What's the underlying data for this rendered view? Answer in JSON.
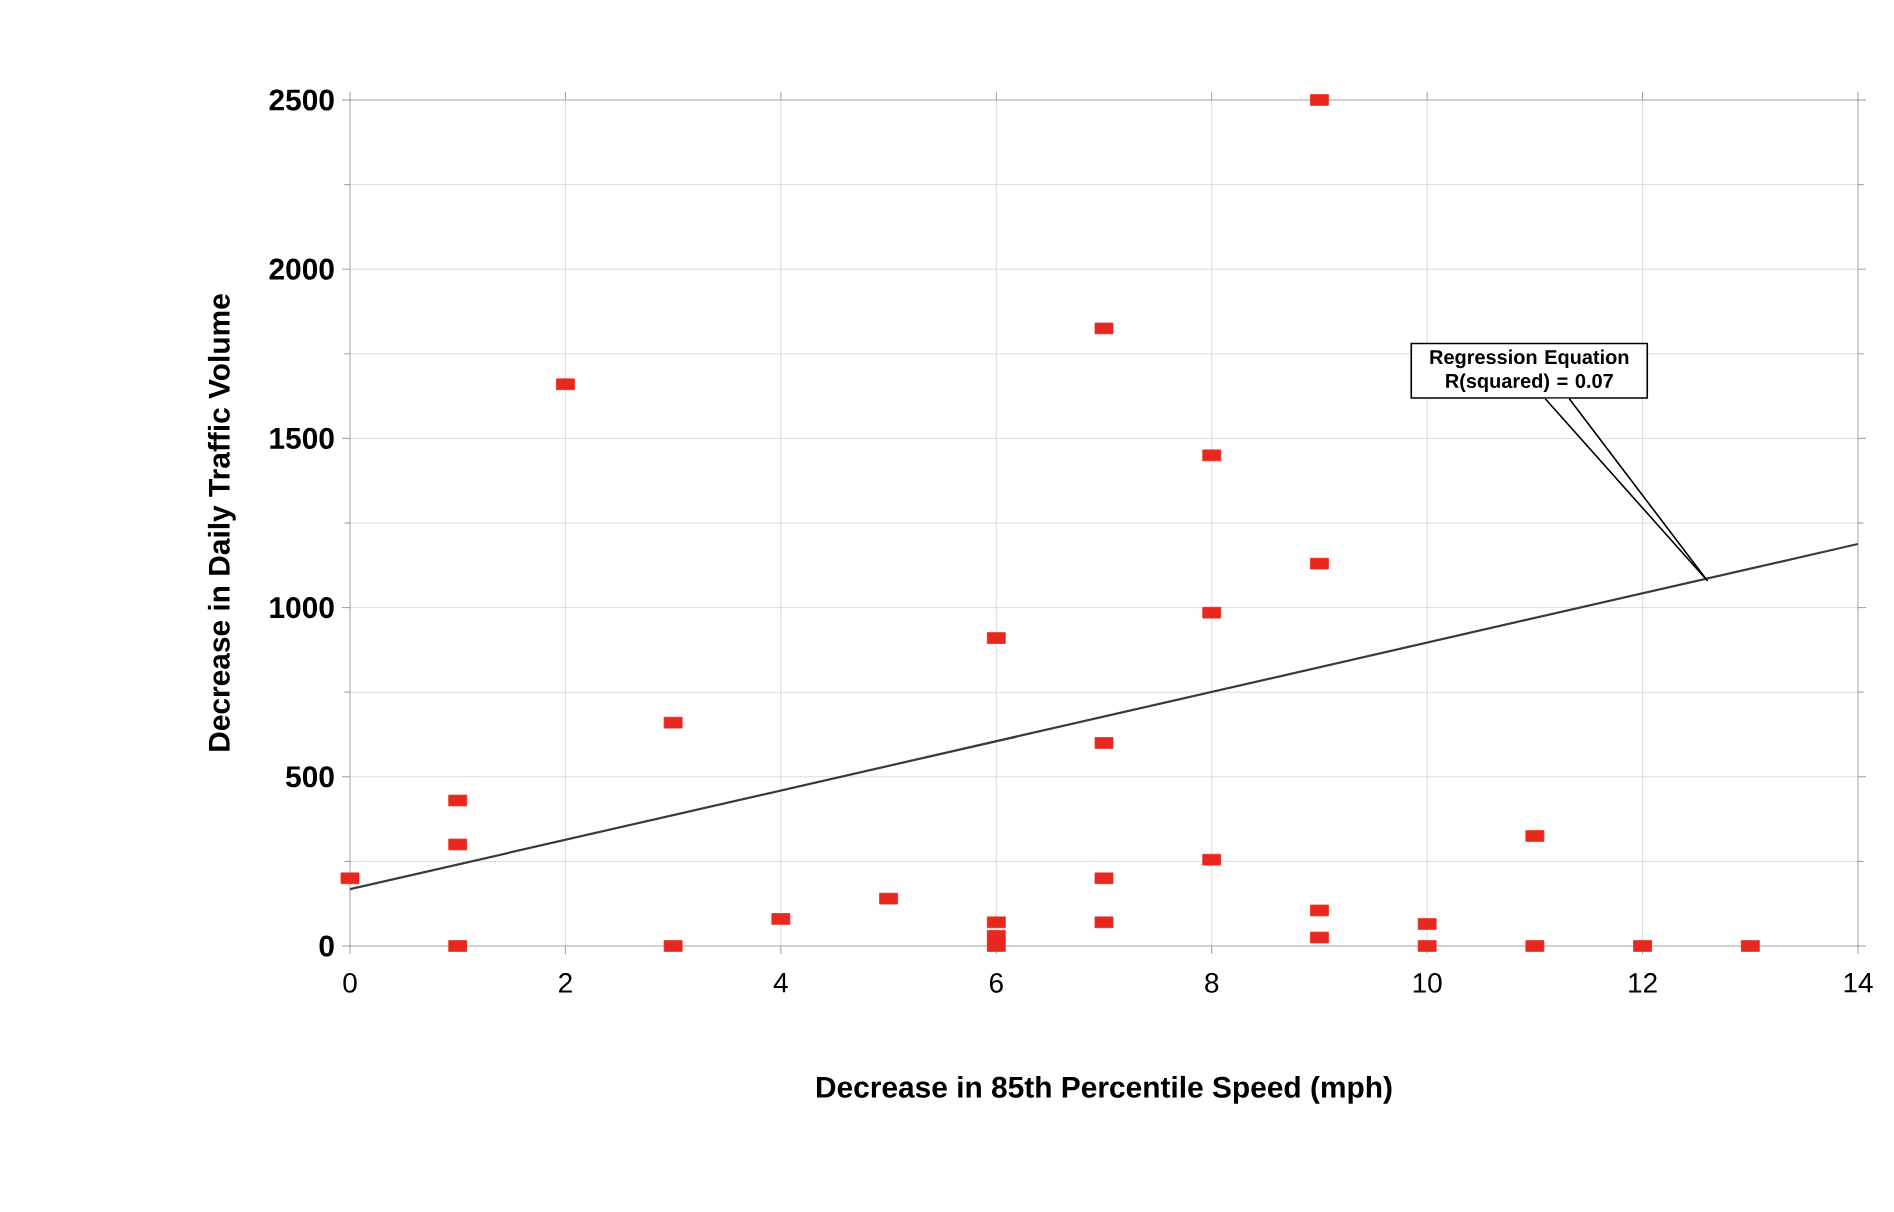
{
  "chart_data": {
    "type": "scatter",
    "xlabel": "Decrease in 85th Percentile Speed (mph)",
    "ylabel": "Decrease in Daily Traffic Volume",
    "xlim": [
      0,
      14
    ],
    "xticks": [
      0,
      2,
      4,
      6,
      8,
      10,
      12,
      14
    ],
    "ylim": [
      0,
      2500
    ],
    "yticks": [
      0,
      500,
      1000,
      1500,
      2000,
      2500
    ],
    "grid": true,
    "marker": "square",
    "series": [
      {
        "color": "#e8281e",
        "x": [
          0,
          1,
          1,
          1,
          2,
          3,
          3,
          4,
          5,
          6,
          6,
          6,
          6,
          7,
          7,
          7,
          7,
          8,
          8,
          8,
          9,
          9,
          9,
          9,
          10,
          10,
          11,
          11,
          12,
          13
        ],
        "values": [
          200,
          430,
          300,
          0,
          1660,
          660,
          0,
          80,
          140,
          910,
          70,
          30,
          0,
          1825,
          600,
          200,
          70,
          1450,
          985,
          255,
          2500,
          1130,
          105,
          25,
          65,
          0,
          325,
          0,
          0,
          0
        ]
      },
      {
        "type": "line",
        "color": "#3a3a3a",
        "marker": "none",
        "x": [
          0,
          14
        ],
        "values": [
          168,
          1188
        ]
      }
    ],
    "annotations": [
      "Regression Equation R(squared) = 0.07"
    ]
  }
}
